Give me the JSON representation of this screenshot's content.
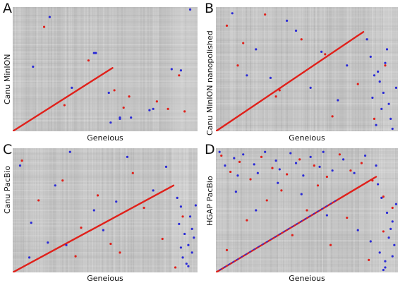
{
  "chart_data": [
    {
      "type": "scatter",
      "panel_letter": "A",
      "xlabel": "Geneious",
      "ylabel": "Canu MinION",
      "xlim": [
        0,
        1
      ],
      "ylim": [
        0,
        1
      ],
      "series": [
        {
          "color": "#e0201a",
          "kind": "alignment-diagonal",
          "x": [
            0.0,
            0.54
          ],
          "y": [
            0.0,
            0.51
          ]
        },
        {
          "color": "#e0201a",
          "kind": "scattered-points",
          "x": [
            0.17,
            0.41,
            0.55,
            0.6,
            0.78,
            0.84,
            0.9,
            0.93,
            0.63,
            0.28
          ],
          "y": [
            0.84,
            0.57,
            0.33,
            0.19,
            0.24,
            0.18,
            0.45,
            0.16,
            0.28,
            0.21
          ]
        },
        {
          "color": "#2b2bd6",
          "kind": "scattered-points",
          "x": [
            0.2,
            0.44,
            0.45,
            0.11,
            0.32,
            0.52,
            0.53,
            0.58,
            0.86,
            0.74,
            0.91,
            0.58,
            0.64,
            0.96,
            0.76
          ],
          "y": [
            0.92,
            0.63,
            0.63,
            0.52,
            0.35,
            0.31,
            0.07,
            0.11,
            0.5,
            0.17,
            0.49,
            0.1,
            0.11,
            0.98,
            0.18
          ]
        }
      ]
    },
    {
      "type": "scatter",
      "panel_letter": "B",
      "xlabel": "Geneious",
      "ylabel": "Canu MinION nanopolished",
      "xlim": [
        0,
        1
      ],
      "ylim": [
        0,
        1
      ],
      "series": [
        {
          "color": "#e0201a",
          "kind": "alignment-diagonal",
          "x": [
            0.0,
            0.81
          ],
          "y": [
            0.0,
            0.8
          ]
        },
        {
          "color": "#e0201a",
          "kind": "scattered-points",
          "x": [
            0.06,
            0.15,
            0.27,
            0.35,
            0.47,
            0.6,
            0.64,
            0.78,
            0.87,
            0.93,
            0.12,
            0.33
          ],
          "y": [
            0.85,
            0.71,
            0.94,
            0.33,
            0.74,
            0.62,
            0.12,
            0.38,
            0.1,
            0.53,
            0.53,
            0.28
          ]
        },
        {
          "color": "#2b2bd6",
          "kind": "scattered-points",
          "x": [
            0.09,
            0.17,
            0.22,
            0.3,
            0.39,
            0.44,
            0.52,
            0.58,
            0.67,
            0.72,
            0.83,
            0.87,
            0.9,
            0.92,
            0.95,
            0.85,
            0.88,
            0.91,
            0.93,
            0.96,
            0.99,
            0.86,
            0.89,
            0.94,
            0.97
          ],
          "y": [
            0.95,
            0.45,
            0.66,
            0.43,
            0.89,
            0.81,
            0.35,
            0.64,
            0.25,
            0.53,
            0.74,
            0.45,
            0.4,
            0.31,
            0.22,
            0.6,
            0.05,
            0.18,
            0.55,
            0.1,
            0.35,
            0.27,
            0.48,
            0.66,
            0.02
          ]
        }
      ]
    },
    {
      "type": "scatter",
      "panel_letter": "C",
      "xlabel": "Geneious",
      "ylabel": "Canu PacBio",
      "xlim": [
        0,
        1
      ],
      "ylim": [
        0,
        1
      ],
      "series": [
        {
          "color": "#e0201a",
          "kind": "alignment-diagonal",
          "x": [
            0.0,
            0.87
          ],
          "y": [
            0.0,
            0.7
          ]
        },
        {
          "color": "#e0201a",
          "kind": "scattered-points",
          "x": [
            0.05,
            0.14,
            0.27,
            0.34,
            0.46,
            0.58,
            0.65,
            0.71,
            0.81,
            0.88,
            0.92,
            0.37,
            0.53
          ],
          "y": [
            0.9,
            0.58,
            0.74,
            0.13,
            0.62,
            0.16,
            0.8,
            0.52,
            0.27,
            0.04,
            0.45,
            0.36,
            0.23
          ]
        },
        {
          "color": "#2b2bd6",
          "kind": "scattered-points",
          "x": [
            0.04,
            0.1,
            0.19,
            0.23,
            0.31,
            0.44,
            0.49,
            0.56,
            0.62,
            0.76,
            0.83,
            0.89,
            0.91,
            0.93,
            0.95,
            0.97,
            0.9,
            0.92,
            0.94,
            0.96,
            0.98,
            0.91,
            0.95,
            0.97,
            0.99,
            0.09,
            0.29
          ],
          "y": [
            0.86,
            0.4,
            0.24,
            0.7,
            0.97,
            0.5,
            0.34,
            0.57,
            0.93,
            0.66,
            0.85,
            0.6,
            0.53,
            0.31,
            0.22,
            0.16,
            0.39,
            0.12,
            0.07,
            0.45,
            0.28,
            0.2,
            0.05,
            0.35,
            0.54,
            0.12,
            0.22
          ]
        }
      ]
    },
    {
      "type": "scatter",
      "panel_letter": "D",
      "xlabel": "Geneious",
      "ylabel": "HGAP PacBio",
      "xlim": [
        0,
        1
      ],
      "ylim": [
        0,
        1
      ],
      "series": [
        {
          "color": "#e0201a",
          "kind": "alignment-diagonal",
          "x": [
            0.0,
            0.88
          ],
          "y": [
            0.0,
            0.77
          ]
        },
        {
          "color": "#2b2bd6",
          "kind": "alignment-diagonal-overlay",
          "x": [
            0.02,
            0.66
          ],
          "y": [
            0.02,
            0.58
          ]
        },
        {
          "color": "#e0201a",
          "kind": "scattered-points",
          "x": [
            0.03,
            0.08,
            0.13,
            0.19,
            0.25,
            0.31,
            0.39,
            0.46,
            0.54,
            0.61,
            0.68,
            0.74,
            0.8,
            0.86,
            0.92,
            0.97,
            0.06,
            0.17,
            0.28,
            0.42,
            0.5,
            0.63,
            0.72,
            0.84,
            0.92,
            0.36,
            0.56
          ],
          "y": [
            0.94,
            0.81,
            0.89,
            0.75,
            0.93,
            0.84,
            0.79,
            0.91,
            0.86,
            0.77,
            0.95,
            0.82,
            0.88,
            0.74,
            0.61,
            0.52,
            0.18,
            0.42,
            0.58,
            0.3,
            0.5,
            0.22,
            0.44,
            0.1,
            0.33,
            0.66,
            0.7
          ]
        },
        {
          "color": "#2b2bd6",
          "kind": "scattered-points",
          "x": [
            0.02,
            0.05,
            0.1,
            0.12,
            0.15,
            0.21,
            0.23,
            0.27,
            0.33,
            0.35,
            0.41,
            0.44,
            0.48,
            0.52,
            0.57,
            0.59,
            0.64,
            0.7,
            0.76,
            0.82,
            0.88,
            0.91,
            0.94,
            0.96,
            0.98,
            0.9,
            0.93,
            0.95,
            0.97,
            0.99,
            0.89,
            0.92,
            0.97,
            0.11,
            0.22,
            0.34,
            0.47,
            0.61,
            0.78,
            0.85,
            0.93
          ],
          "y": [
            0.97,
            0.86,
            0.92,
            0.78,
            0.95,
            0.87,
            0.8,
            0.97,
            0.9,
            0.83,
            0.96,
            0.88,
            0.78,
            0.93,
            0.85,
            0.97,
            0.82,
            0.91,
            0.8,
            0.94,
            0.86,
            0.6,
            0.48,
            0.35,
            0.22,
            0.16,
            0.09,
            0.28,
            0.41,
            0.55,
            0.71,
            0.02,
            0.13,
            0.65,
            0.5,
            0.72,
            0.63,
            0.46,
            0.34,
            0.25,
            0.04
          ]
        }
      ]
    }
  ]
}
